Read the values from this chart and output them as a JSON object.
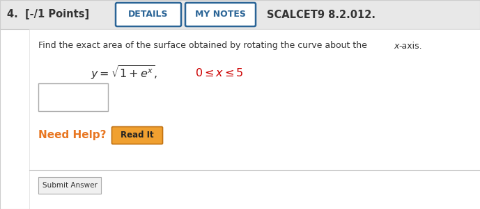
{
  "bg_color": "#f0f0f0",
  "content_bg": "#ffffff",
  "header_bg": "#e8e8e8",
  "header_text": "4.  [-/1 Points]",
  "header_text_color": "#333333",
  "btn_details_text": "DETAILS",
  "btn_mynotes_text": "MY NOTES",
  "btn_border_color": "#2a6496",
  "btn_text_color": "#2a6496",
  "scalcet_text": "SCALCET9 8.2.012.",
  "scalcet_color": "#333333",
  "instruction_color": "#333333",
  "formula_color": "#333333",
  "range_color": "#cc0000",
  "need_help_color": "#e87722",
  "need_help_text": "Need Help?",
  "read_it_text": "Read It",
  "read_it_bg": "#f0a030",
  "read_it_border": "#c07010",
  "submit_text": "Submit Answer"
}
